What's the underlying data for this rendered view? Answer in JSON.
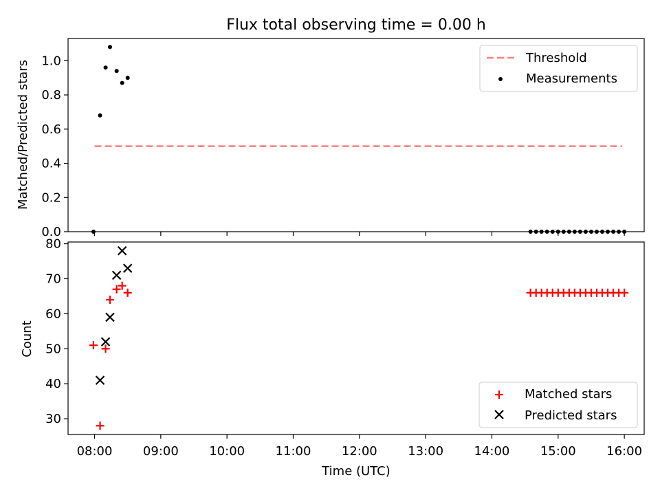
{
  "chart_data": [
    {
      "type": "scatter",
      "title": "Flux total observing time = 0.00 h",
      "ylabel": "Matched/Predicted stars",
      "xlabel": "",
      "xlim": [
        "07:36",
        "16:18"
      ],
      "ylim": [
        0,
        1.13
      ],
      "yticks": [
        "0.0",
        "0.2",
        "0.4",
        "0.6",
        "0.8",
        "1.0"
      ],
      "legend": {
        "placement": "top-right",
        "entries": [
          {
            "label": "Threshold",
            "style": "dashed-line",
            "color": "#ff7f7f"
          },
          {
            "label": "Measurements",
            "style": "dot",
            "color": "#000000"
          }
        ]
      },
      "threshold": {
        "y": 0.5,
        "x_start": "08:00",
        "x_end": "15:58",
        "color": "#ff7f7f"
      },
      "series": [
        {
          "name": "Measurements",
          "color": "#000000",
          "points": [
            {
              "x": "07:59",
              "y": 0.0
            },
            {
              "x": "08:05",
              "y": 0.68
            },
            {
              "x": "08:10",
              "y": 0.96
            },
            {
              "x": "08:14",
              "y": 1.08
            },
            {
              "x": "08:20",
              "y": 0.94
            },
            {
              "x": "08:25",
              "y": 0.87
            },
            {
              "x": "08:30",
              "y": 0.9
            },
            {
              "x": "14:35",
              "y": 0.0
            },
            {
              "x": "14:40",
              "y": 0.0
            },
            {
              "x": "14:45",
              "y": 0.0
            },
            {
              "x": "14:50",
              "y": 0.0
            },
            {
              "x": "14:55",
              "y": 0.0
            },
            {
              "x": "15:00",
              "y": 0.0
            },
            {
              "x": "15:05",
              "y": 0.0
            },
            {
              "x": "15:10",
              "y": 0.0
            },
            {
              "x": "15:15",
              "y": 0.0
            },
            {
              "x": "15:20",
              "y": 0.0
            },
            {
              "x": "15:25",
              "y": 0.0
            },
            {
              "x": "15:30",
              "y": 0.0
            },
            {
              "x": "15:35",
              "y": 0.0
            },
            {
              "x": "15:40",
              "y": 0.0
            },
            {
              "x": "15:45",
              "y": 0.0
            },
            {
              "x": "15:50",
              "y": 0.0
            },
            {
              "x": "15:55",
              "y": 0.0
            },
            {
              "x": "16:00",
              "y": 0.0
            }
          ]
        }
      ]
    },
    {
      "type": "scatter",
      "title": "",
      "ylabel": "Count",
      "xlabel": "Time (UTC)",
      "xlim": [
        "07:36",
        "16:18"
      ],
      "ylim": [
        25.5,
        80.5
      ],
      "yticks": [
        "30",
        "40",
        "50",
        "60",
        "70",
        "80"
      ],
      "xticks": [
        "08:00",
        "09:00",
        "10:00",
        "11:00",
        "12:00",
        "13:00",
        "14:00",
        "15:00",
        "16:00"
      ],
      "legend": {
        "placement": "bottom-right",
        "entries": [
          {
            "label": "Matched stars",
            "style": "plus",
            "color": "#ff0000"
          },
          {
            "label": "Predicted stars",
            "style": "x",
            "color": "#000000"
          }
        ]
      },
      "series": [
        {
          "name": "Matched stars",
          "color": "#ff0000",
          "points": [
            {
              "x": "07:59",
              "y": 51
            },
            {
              "x": "08:05",
              "y": 28
            },
            {
              "x": "08:10",
              "y": 50
            },
            {
              "x": "08:14",
              "y": 64
            },
            {
              "x": "08:20",
              "y": 67
            },
            {
              "x": "08:25",
              "y": 68
            },
            {
              "x": "08:30",
              "y": 66
            },
            {
              "x": "14:35",
              "y": 66
            },
            {
              "x": "14:40",
              "y": 66
            },
            {
              "x": "14:45",
              "y": 66
            },
            {
              "x": "14:50",
              "y": 66
            },
            {
              "x": "14:55",
              "y": 66
            },
            {
              "x": "15:00",
              "y": 66
            },
            {
              "x": "15:05",
              "y": 66
            },
            {
              "x": "15:10",
              "y": 66
            },
            {
              "x": "15:15",
              "y": 66
            },
            {
              "x": "15:20",
              "y": 66
            },
            {
              "x": "15:25",
              "y": 66
            },
            {
              "x": "15:30",
              "y": 66
            },
            {
              "x": "15:35",
              "y": 66
            },
            {
              "x": "15:40",
              "y": 66
            },
            {
              "x": "15:45",
              "y": 66
            },
            {
              "x": "15:50",
              "y": 66
            },
            {
              "x": "15:55",
              "y": 66
            },
            {
              "x": "16:00",
              "y": 66
            }
          ]
        },
        {
          "name": "Predicted stars",
          "color": "#000000",
          "points": [
            {
              "x": "08:05",
              "y": 41
            },
            {
              "x": "08:10",
              "y": 52
            },
            {
              "x": "08:14",
              "y": 59
            },
            {
              "x": "08:20",
              "y": 71
            },
            {
              "x": "08:25",
              "y": 78
            },
            {
              "x": "08:30",
              "y": 73
            }
          ]
        }
      ]
    }
  ]
}
